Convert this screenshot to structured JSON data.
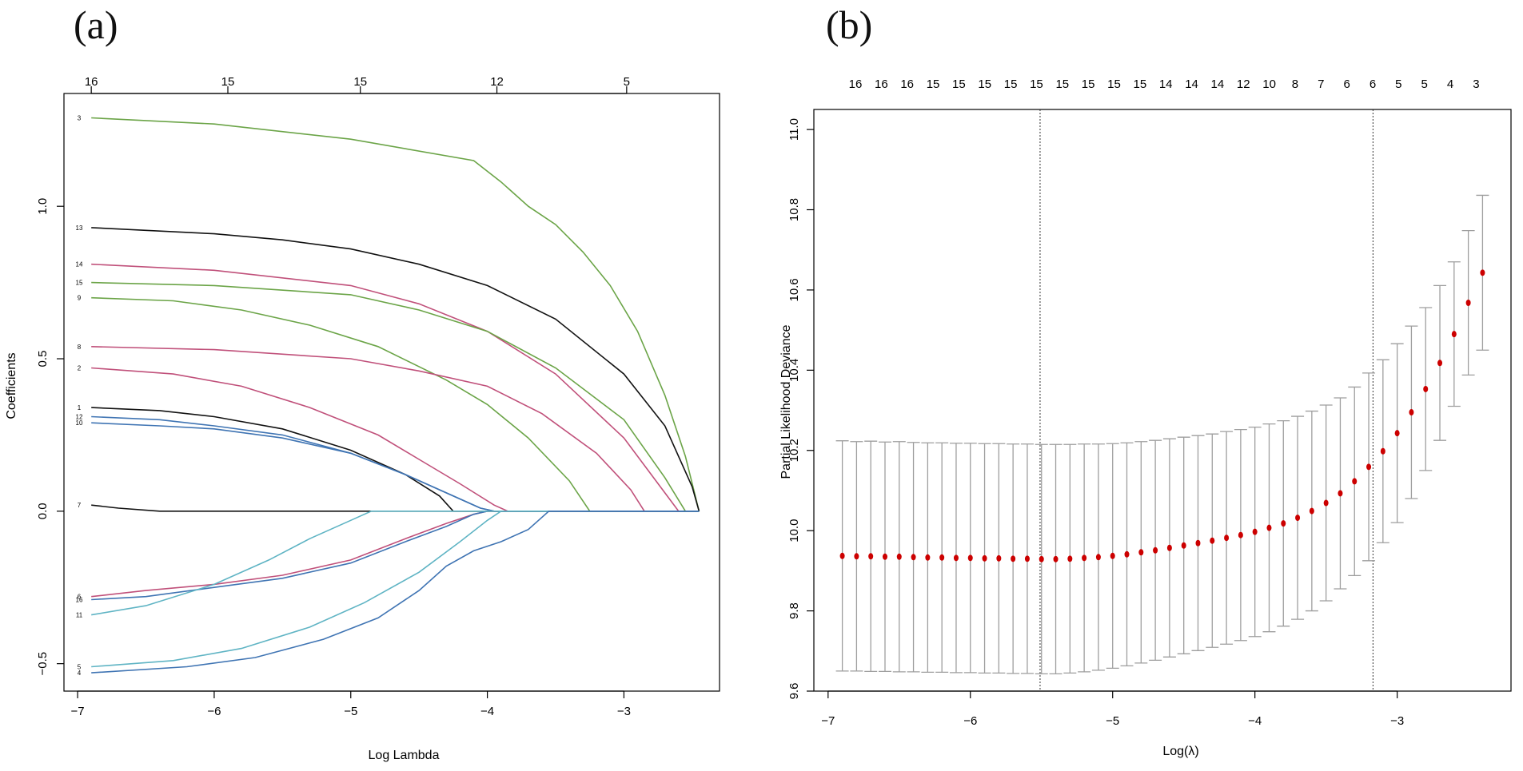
{
  "colors": {
    "black": "#111111",
    "red": "#c0507a",
    "green": "#6ba447",
    "blue": "#3f74b3",
    "cyan": "#5fb4c4",
    "gray": "#9e9e9e",
    "dot": "#cc0000"
  },
  "chart_data": [
    {
      "type": "line",
      "panel_label": "(a)",
      "xlabel": "Log Lambda",
      "ylabel": "Coefficients",
      "xlim": [
        -7.1,
        -2.3
      ],
      "ylim": [
        -0.59,
        1.37
      ],
      "x_ticks": [
        -7,
        -6,
        -5,
        -4,
        -3
      ],
      "x_tick_labels": [
        "−7",
        "−6",
        "−5",
        "−4",
        "−3"
      ],
      "y_ticks": [
        -0.5,
        0.0,
        0.5,
        1.0
      ],
      "y_tick_labels": [
        "−0.5",
        "0.0",
        "0.5",
        "1.0"
      ],
      "top_axis": {
        "x": [
          -6.9,
          -5.9,
          -4.93,
          -3.93,
          -2.98
        ],
        "labels": [
          "16",
          "15",
          "15",
          "12",
          "5"
        ]
      },
      "series": [
        {
          "name": "3",
          "color": "green",
          "points": [
            [
              -6.9,
              1.29
            ],
            [
              -6.0,
              1.27
            ],
            [
              -5.0,
              1.22
            ],
            [
              -4.1,
              1.15
            ],
            [
              -3.9,
              1.08
            ],
            [
              -3.7,
              1.0
            ],
            [
              -3.5,
              0.94
            ],
            [
              -3.3,
              0.85
            ],
            [
              -3.1,
              0.74
            ],
            [
              -2.9,
              0.59
            ],
            [
              -2.7,
              0.38
            ],
            [
              -2.55,
              0.18
            ],
            [
              -2.45,
              0.0
            ]
          ]
        },
        {
          "name": "13",
          "color": "black",
          "points": [
            [
              -6.9,
              0.93
            ],
            [
              -6.0,
              0.91
            ],
            [
              -5.5,
              0.89
            ],
            [
              -5.0,
              0.86
            ],
            [
              -4.5,
              0.81
            ],
            [
              -4.0,
              0.74
            ],
            [
              -3.5,
              0.63
            ],
            [
              -3.0,
              0.45
            ],
            [
              -2.7,
              0.28
            ],
            [
              -2.5,
              0.08
            ],
            [
              -2.45,
              0.0
            ]
          ]
        },
        {
          "name": "14",
          "color": "red",
          "points": [
            [
              -6.9,
              0.81
            ],
            [
              -6.0,
              0.79
            ],
            [
              -5.0,
              0.74
            ],
            [
              -4.5,
              0.68
            ],
            [
              -4.0,
              0.59
            ],
            [
              -3.5,
              0.45
            ],
            [
              -3.0,
              0.24
            ],
            [
              -2.7,
              0.06
            ],
            [
              -2.6,
              0.0
            ],
            [
              -2.45,
              0.0
            ]
          ]
        },
        {
          "name": "15",
          "color": "green",
          "points": [
            [
              -6.9,
              0.75
            ],
            [
              -6.0,
              0.74
            ],
            [
              -5.0,
              0.71
            ],
            [
              -4.5,
              0.66
            ],
            [
              -4.0,
              0.59
            ],
            [
              -3.5,
              0.47
            ],
            [
              -3.0,
              0.3
            ],
            [
              -2.7,
              0.11
            ],
            [
              -2.55,
              0.0
            ],
            [
              -2.45,
              0.0
            ]
          ]
        },
        {
          "name": "9",
          "color": "green",
          "points": [
            [
              -6.9,
              0.7
            ],
            [
              -6.3,
              0.69
            ],
            [
              -5.8,
              0.66
            ],
            [
              -5.3,
              0.61
            ],
            [
              -4.8,
              0.54
            ],
            [
              -4.3,
              0.43
            ],
            [
              -4.0,
              0.35
            ],
            [
              -3.7,
              0.24
            ],
            [
              -3.4,
              0.1
            ],
            [
              -3.25,
              0.0
            ],
            [
              -2.45,
              0.0
            ]
          ]
        },
        {
          "name": "8",
          "color": "red",
          "points": [
            [
              -6.9,
              0.54
            ],
            [
              -6.0,
              0.53
            ],
            [
              -5.0,
              0.5
            ],
            [
              -4.5,
              0.46
            ],
            [
              -4.0,
              0.41
            ],
            [
              -3.6,
              0.32
            ],
            [
              -3.2,
              0.19
            ],
            [
              -2.95,
              0.07
            ],
            [
              -2.85,
              0.0
            ],
            [
              -2.45,
              0.0
            ]
          ]
        },
        {
          "name": "2",
          "color": "red",
          "points": [
            [
              -6.9,
              0.47
            ],
            [
              -6.3,
              0.45
            ],
            [
              -5.8,
              0.41
            ],
            [
              -5.3,
              0.34
            ],
            [
              -4.8,
              0.25
            ],
            [
              -4.5,
              0.17
            ],
            [
              -4.2,
              0.09
            ],
            [
              -3.95,
              0.02
            ],
            [
              -3.85,
              0.0
            ],
            [
              -2.45,
              0.0
            ]
          ]
        },
        {
          "name": "1",
          "color": "black",
          "points": [
            [
              -6.9,
              0.34
            ],
            [
              -6.4,
              0.33
            ],
            [
              -6.0,
              0.31
            ],
            [
              -5.5,
              0.27
            ],
            [
              -5.0,
              0.2
            ],
            [
              -4.6,
              0.12
            ],
            [
              -4.35,
              0.05
            ],
            [
              -4.25,
              0.0
            ],
            [
              -2.45,
              0.0
            ]
          ]
        },
        {
          "name": "12",
          "color": "blue",
          "points": [
            [
              -6.9,
              0.31
            ],
            [
              -6.4,
              0.3
            ],
            [
              -6.0,
              0.28
            ],
            [
              -5.5,
              0.25
            ],
            [
              -5.0,
              0.19
            ],
            [
              -4.6,
              0.12
            ],
            [
              -4.3,
              0.06
            ],
            [
              -4.05,
              0.01
            ],
            [
              -3.95,
              0.0
            ],
            [
              -2.45,
              0.0
            ]
          ]
        },
        {
          "name": "10",
          "color": "blue",
          "points": [
            [
              -6.9,
              0.29
            ],
            [
              -6.4,
              0.28
            ],
            [
              -6.0,
              0.27
            ],
            [
              -5.5,
              0.24
            ],
            [
              -5.0,
              0.19
            ],
            [
              -4.6,
              0.12
            ],
            [
              -4.3,
              0.06
            ],
            [
              -4.05,
              0.01
            ],
            [
              -3.95,
              0.0
            ],
            [
              -2.45,
              0.0
            ]
          ]
        },
        {
          "name": "7",
          "color": "black",
          "points": [
            [
              -6.9,
              0.02
            ],
            [
              -6.7,
              0.01
            ],
            [
              -6.4,
              0.0
            ],
            [
              -2.45,
              0.0
            ]
          ]
        },
        {
          "name": "6",
          "color": "red",
          "points": [
            [
              -6.9,
              -0.28
            ],
            [
              -6.5,
              -0.26
            ],
            [
              -6.0,
              -0.24
            ],
            [
              -5.5,
              -0.21
            ],
            [
              -5.0,
              -0.16
            ],
            [
              -4.6,
              -0.09
            ],
            [
              -4.3,
              -0.04
            ],
            [
              -4.1,
              -0.01
            ],
            [
              -4.0,
              0.0
            ],
            [
              -2.45,
              0.0
            ]
          ]
        },
        {
          "name": "16",
          "color": "blue",
          "points": [
            [
              -6.9,
              -0.29
            ],
            [
              -6.5,
              -0.28
            ],
            [
              -6.0,
              -0.25
            ],
            [
              -5.5,
              -0.22
            ],
            [
              -5.0,
              -0.17
            ],
            [
              -4.6,
              -0.1
            ],
            [
              -4.3,
              -0.05
            ],
            [
              -4.1,
              -0.01
            ],
            [
              -4.0,
              0.0
            ],
            [
              -2.45,
              0.0
            ]
          ]
        },
        {
          "name": "11",
          "color": "cyan",
          "points": [
            [
              -6.9,
              -0.34
            ],
            [
              -6.5,
              -0.31
            ],
            [
              -6.0,
              -0.24
            ],
            [
              -5.6,
              -0.16
            ],
            [
              -5.3,
              -0.09
            ],
            [
              -5.0,
              -0.03
            ],
            [
              -4.85,
              0.0
            ],
            [
              -2.45,
              0.0
            ]
          ]
        },
        {
          "name": "5",
          "color": "cyan",
          "points": [
            [
              -6.9,
              -0.51
            ],
            [
              -6.3,
              -0.49
            ],
            [
              -5.8,
              -0.45
            ],
            [
              -5.3,
              -0.38
            ],
            [
              -4.9,
              -0.3
            ],
            [
              -4.5,
              -0.2
            ],
            [
              -4.2,
              -0.1
            ],
            [
              -4.0,
              -0.03
            ],
            [
              -3.9,
              0.0
            ],
            [
              -2.45,
              0.0
            ]
          ]
        },
        {
          "name": "4",
          "color": "blue",
          "points": [
            [
              -6.9,
              -0.53
            ],
            [
              -6.2,
              -0.51
            ],
            [
              -5.7,
              -0.48
            ],
            [
              -5.2,
              -0.42
            ],
            [
              -4.8,
              -0.35
            ],
            [
              -4.5,
              -0.26
            ],
            [
              -4.3,
              -0.18
            ],
            [
              -4.1,
              -0.13
            ],
            [
              -3.9,
              -0.1
            ],
            [
              -3.7,
              -0.06
            ],
            [
              -3.55,
              0.0
            ],
            [
              -2.45,
              0.0
            ]
          ]
        }
      ]
    },
    {
      "type": "scatter",
      "panel_label": "(b)",
      "xlabel": "Log(λ)",
      "ylabel": "Partial Likelihood Deviance",
      "xlim": [
        -7.1,
        -2.2
      ],
      "ylim": [
        9.6,
        11.05
      ],
      "x_ticks": [
        -7,
        -6,
        -5,
        -4,
        -3
      ],
      "x_tick_labels": [
        "−7",
        "−6",
        "−5",
        "−4",
        "−3"
      ],
      "y_ticks": [
        9.6,
        9.8,
        10.0,
        10.2,
        10.4,
        10.6,
        10.8,
        11.0
      ],
      "y_tick_labels": [
        "9.6",
        "9.8",
        "10.0",
        "10.2",
        "10.4",
        "10.6",
        "10.8",
        "11.0"
      ],
      "vlines": [
        -5.51,
        -3.17
      ],
      "top_axis": {
        "labels": [
          "16",
          "16",
          "16",
          "15",
          "15",
          "15",
          "15",
          "15",
          "15",
          "15",
          "15",
          "15",
          "14",
          "14",
          "14",
          "12",
          "10",
          "8",
          "7",
          "6",
          "6",
          "5",
          "5",
          "4",
          "3"
        ]
      },
      "x": [
        -6.9,
        -6.8,
        -6.7,
        -6.6,
        -6.5,
        -6.4,
        -6.3,
        -6.2,
        -6.1,
        -6.0,
        -5.9,
        -5.8,
        -5.7,
        -5.6,
        -5.5,
        -5.4,
        -5.3,
        -5.2,
        -5.1,
        -5.0,
        -4.9,
        -4.8,
        -4.7,
        -4.6,
        -4.5,
        -4.4,
        -4.3,
        -4.2,
        -4.1,
        -4.0,
        -3.9,
        -3.8,
        -3.7,
        -3.6,
        -3.5,
        -3.4,
        -3.3,
        -3.2,
        -3.1,
        -3.0,
        -2.9,
        -2.8,
        -2.7,
        -2.6,
        -2.5,
        -2.4
      ],
      "y": [
        9.937,
        9.936,
        9.936,
        9.935,
        9.935,
        9.934,
        9.933,
        9.933,
        9.932,
        9.932,
        9.931,
        9.931,
        9.93,
        9.93,
        9.929,
        9.929,
        9.93,
        9.932,
        9.934,
        9.937,
        9.941,
        9.946,
        9.951,
        9.957,
        9.963,
        9.969,
        9.975,
        9.982,
        9.989,
        9.997,
        10.007,
        10.018,
        10.032,
        10.049,
        10.069,
        10.093,
        10.123,
        10.159,
        10.198,
        10.243,
        10.295,
        10.353,
        10.418,
        10.49,
        10.568,
        10.643
      ],
      "lower": [
        9.65,
        9.65,
        9.649,
        9.649,
        9.648,
        9.648,
        9.647,
        9.647,
        9.646,
        9.646,
        9.645,
        9.645,
        9.644,
        9.644,
        9.643,
        9.643,
        9.645,
        9.648,
        9.652,
        9.657,
        9.663,
        9.67,
        9.677,
        9.685,
        9.693,
        9.701,
        9.709,
        9.717,
        9.726,
        9.736,
        9.748,
        9.762,
        9.779,
        9.8,
        9.825,
        9.855,
        9.888,
        9.925,
        9.97,
        10.02,
        10.08,
        10.15,
        10.225,
        10.31,
        10.388,
        10.45
      ],
      "upper": [
        10.224,
        10.222,
        10.223,
        10.221,
        10.222,
        10.22,
        10.219,
        10.219,
        10.218,
        10.218,
        10.217,
        10.217,
        10.216,
        10.216,
        10.215,
        10.215,
        10.215,
        10.216,
        10.216,
        10.217,
        10.219,
        10.222,
        10.225,
        10.229,
        10.233,
        10.237,
        10.241,
        10.247,
        10.252,
        10.258,
        10.266,
        10.274,
        10.285,
        10.298,
        10.313,
        10.331,
        10.358,
        10.393,
        10.426,
        10.466,
        10.51,
        10.556,
        10.611,
        10.67,
        10.748,
        10.836
      ]
    }
  ]
}
